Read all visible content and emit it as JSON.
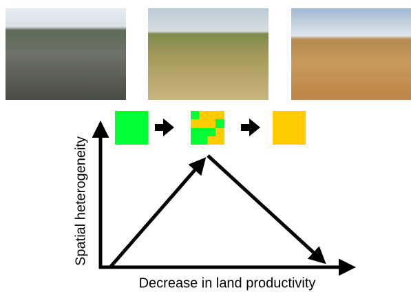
{
  "y_axis_label": "Spatial heterogeneity",
  "x_axis_label": "Decrease in land productivity"
}
